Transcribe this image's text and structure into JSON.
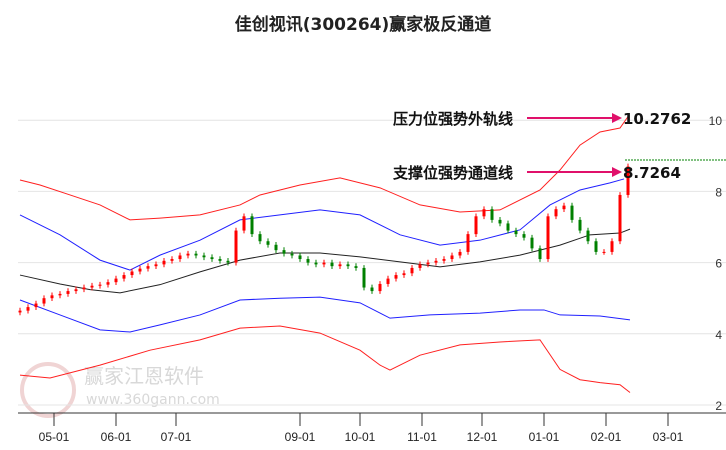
{
  "chart_data": {
    "type": "line",
    "title": "佳创视讯(300264)赢家极反通道",
    "xlabel": "",
    "ylabel": "",
    "ylim": [
      2,
      10.5
    ],
    "x_unit": "days since 05-01",
    "xlim": [
      -18,
      310
    ],
    "grid": true,
    "y_ticks": [
      10,
      8,
      6,
      4,
      2
    ],
    "x_ticks": [
      {
        "label": "05-01",
        "day": 0
      },
      {
        "label": "06-01",
        "day": 31
      },
      {
        "label": "07-01",
        "day": 61
      },
      {
        "label": "09-01",
        "day": 123
      },
      {
        "label": "10-01",
        "day": 153
      },
      {
        "label": "11-01",
        "day": 184
      },
      {
        "label": "12-01",
        "day": 214
      },
      {
        "label": "01-01",
        "day": 245
      },
      {
        "label": "02-01",
        "day": 276
      },
      {
        "label": "03-01",
        "day": 304
      }
    ],
    "series": [
      {
        "name": "upper-outer",
        "color": "#ff2020",
        "points": [
          [
            -17,
            8.32
          ],
          [
            -7,
            8.18
          ],
          [
            8,
            7.9
          ],
          [
            23,
            7.62
          ],
          [
            38,
            7.2
          ],
          [
            53,
            7.25
          ],
          [
            73,
            7.34
          ],
          [
            93,
            7.62
          ],
          [
            103,
            7.9
          ],
          [
            123,
            8.18
          ],
          [
            143,
            8.38
          ],
          [
            163,
            8.1
          ],
          [
            183,
            7.62
          ],
          [
            203,
            7.42
          ],
          [
            223,
            7.48
          ],
          [
            243,
            8.04
          ],
          [
            253,
            8.6
          ],
          [
            263,
            9.3
          ],
          [
            273,
            9.67
          ],
          [
            283,
            9.78
          ],
          [
            287,
            10.1
          ]
        ]
      },
      {
        "name": "upper-channel",
        "color": "#2020ff",
        "points": [
          [
            -17,
            7.34
          ],
          [
            3,
            6.78
          ],
          [
            23,
            6.07
          ],
          [
            38,
            5.79
          ],
          [
            53,
            6.21
          ],
          [
            73,
            6.63
          ],
          [
            93,
            7.2
          ],
          [
            113,
            7.34
          ],
          [
            133,
            7.48
          ],
          [
            153,
            7.34
          ],
          [
            173,
            6.78
          ],
          [
            193,
            6.49
          ],
          [
            213,
            6.63
          ],
          [
            233,
            6.92
          ],
          [
            248,
            7.62
          ],
          [
            263,
            8.04
          ],
          [
            278,
            8.24
          ],
          [
            285,
            8.35
          ]
        ]
      },
      {
        "name": "middle",
        "color": "#222222",
        "points": [
          [
            -17,
            5.65
          ],
          [
            3,
            5.4
          ],
          [
            18,
            5.24
          ],
          [
            33,
            5.15
          ],
          [
            53,
            5.38
          ],
          [
            73,
            5.74
          ],
          [
            93,
            6.07
          ],
          [
            113,
            6.27
          ],
          [
            133,
            6.27
          ],
          [
            153,
            6.16
          ],
          [
            173,
            6.02
          ],
          [
            193,
            5.88
          ],
          [
            213,
            6.02
          ],
          [
            233,
            6.21
          ],
          [
            253,
            6.49
          ],
          [
            268,
            6.78
          ],
          [
            283,
            6.83
          ],
          [
            288,
            6.94
          ]
        ]
      },
      {
        "name": "lower-channel",
        "color": "#2020ff",
        "points": [
          [
            -17,
            4.95
          ],
          [
            3,
            4.53
          ],
          [
            23,
            4.11
          ],
          [
            38,
            4.05
          ],
          [
            53,
            4.25
          ],
          [
            73,
            4.53
          ],
          [
            93,
            4.95
          ],
          [
            113,
            5.0
          ],
          [
            133,
            5.03
          ],
          [
            153,
            4.87
          ],
          [
            168,
            4.44
          ],
          [
            188,
            4.53
          ],
          [
            213,
            4.58
          ],
          [
            233,
            4.67
          ],
          [
            245,
            4.67
          ],
          [
            253,
            4.53
          ],
          [
            273,
            4.5
          ],
          [
            288,
            4.39
          ]
        ]
      },
      {
        "name": "lower-outer",
        "color": "#ff2020",
        "points": [
          [
            -17,
            2.84
          ],
          [
            -2,
            2.76
          ],
          [
            23,
            3.12
          ],
          [
            48,
            3.54
          ],
          [
            73,
            3.83
          ],
          [
            93,
            4.16
          ],
          [
            113,
            4.22
          ],
          [
            133,
            4.02
          ],
          [
            153,
            3.54
          ],
          [
            163,
            3.12
          ],
          [
            168,
            2.98
          ],
          [
            183,
            3.4
          ],
          [
            203,
            3.69
          ],
          [
            223,
            3.77
          ],
          [
            243,
            3.83
          ],
          [
            253,
            3.0
          ],
          [
            263,
            2.71
          ],
          [
            273,
            2.63
          ],
          [
            283,
            2.57
          ],
          [
            288,
            2.35
          ]
        ]
      }
    ],
    "candles": {
      "start_day": -17,
      "step_days": 4,
      "closes": [
        4.65,
        4.75,
        4.85,
        5.0,
        5.08,
        5.12,
        5.2,
        5.25,
        5.3,
        5.35,
        5.38,
        5.45,
        5.55,
        5.65,
        5.75,
        5.83,
        5.9,
        5.95,
        6.05,
        6.1,
        6.2,
        6.25,
        6.2,
        6.15,
        6.1,
        6.05,
        6.0,
        6.9,
        7.3,
        6.8,
        6.6,
        6.5,
        6.35,
        6.25,
        6.2,
        6.1,
        6.0,
        5.95,
        6.0,
        5.9,
        5.95,
        5.9,
        5.85,
        5.3,
        5.2,
        5.4,
        5.55,
        5.65,
        5.7,
        5.85,
        5.95,
        6.0,
        6.05,
        6.1,
        6.2,
        6.3,
        6.8,
        7.3,
        7.5,
        7.2,
        7.1,
        6.9,
        6.8,
        6.7,
        6.4,
        6.1,
        7.3,
        7.5,
        7.6,
        7.2,
        6.9,
        6.6,
        6.3,
        6.3,
        6.6,
        7.9,
        8.7
      ],
      "up_color": "#ff0000",
      "down_color": "#008000"
    },
    "reference_line": {
      "value": 8.9,
      "color": "#008000"
    },
    "annotations": [
      {
        "text": "压力位强势外轨线",
        "value_label": "10.2762",
        "value": 10.2762
      },
      {
        "text": "支撑位强势通道线",
        "value_label": "8.7264",
        "value": 8.7264
      }
    ],
    "arrow_color": "#e0106a"
  },
  "watermark": {
    "name": "赢家江恩软件",
    "url": "www.360gann.com",
    "logo": "江赢恩家"
  }
}
